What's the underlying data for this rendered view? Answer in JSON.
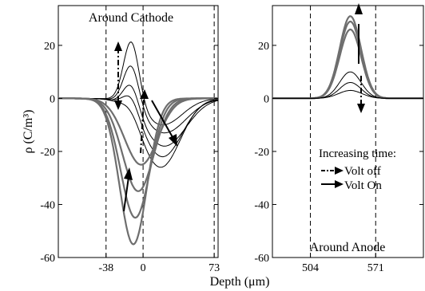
{
  "chart_data": [
    {
      "type": "line",
      "title": "Around Cathode",
      "xlabel": "",
      "ylabel": "ρ (C/m³)",
      "xlim": [
        -87,
        77
      ],
      "ylim": [
        -60,
        35
      ],
      "xticks": [
        -38,
        0,
        73
      ],
      "xtick_labels": [
        "-38",
        "0",
        "73"
      ],
      "yticks": [
        -60,
        -40,
        -20,
        0,
        20
      ],
      "ytick_labels": [
        "-60",
        "-40",
        "-20",
        "0",
        "20"
      ],
      "vlines": [
        -38,
        0,
        73
      ],
      "series_groups": [
        {
          "phase": "volt-off",
          "color": "#000000",
          "profiles": [
            {
              "peak": 24,
              "center": -12,
              "width": 8,
              "dip": -10,
              "dip_center": 20,
              "dip_width": 20
            },
            {
              "peak": 16,
              "center": -12,
              "width": 8,
              "dip": -13,
              "dip_center": 22,
              "dip_width": 22
            },
            {
              "peak": 10,
              "center": -12,
              "width": 8,
              "dip": -18,
              "dip_center": 22,
              "dip_width": 22
            },
            {
              "peak": 6,
              "center": -12,
              "width": 8,
              "dip": -22,
              "dip_center": 20,
              "dip_width": 20
            },
            {
              "peak": 3,
              "center": -12,
              "width": 9,
              "dip": -26,
              "dip_center": 18,
              "dip_width": 20
            }
          ]
        },
        {
          "phase": "volt-on",
          "color": "#6e6e6e",
          "profiles": [
            {
              "dip": -55,
              "dip_center": -10,
              "dip_width": 14
            },
            {
              "dip": -45,
              "dip_center": -8,
              "dip_width": 15
            },
            {
              "dip": -35,
              "dip_center": -5,
              "dip_width": 16
            },
            {
              "dip": -25,
              "dip_center": -2,
              "dip_width": 17
            }
          ]
        }
      ]
    },
    {
      "type": "line",
      "title": "Around Anode",
      "xlabel": "",
      "ylabel": "",
      "xlim": [
        465,
        620
      ],
      "ylim": [
        -60,
        35
      ],
      "xticks": [
        504,
        571
      ],
      "xtick_labels": [
        "504",
        "571"
      ],
      "yticks": [
        -60,
        -40,
        -20,
        0,
        20
      ],
      "ytick_labels": [
        "-60",
        "-40",
        "-20",
        "0",
        "20"
      ],
      "vlines": [
        504,
        571
      ],
      "series_groups": [
        {
          "phase": "volt-on",
          "color": "#6e6e6e",
          "profiles": [
            {
              "peak": 31,
              "center": 545,
              "width": 11
            },
            {
              "peak": 29,
              "center": 545,
              "width": 11
            },
            {
              "peak": 26,
              "center": 545,
              "width": 11
            }
          ]
        },
        {
          "phase": "volt-off",
          "color": "#000000",
          "profiles": [
            {
              "peak": 10,
              "center": 545,
              "width": 11
            },
            {
              "peak": 6,
              "center": 545,
              "width": 11
            },
            {
              "peak": 3,
              "center": 545,
              "width": 12
            }
          ]
        }
      ]
    }
  ],
  "shared_xlabel": "Depth (μm)",
  "legend": {
    "title": "Increasing time:",
    "items": [
      {
        "label": "Volt off",
        "style": "dash-dot"
      },
      {
        "label": "Volt On",
        "style": "solid"
      }
    ]
  }
}
